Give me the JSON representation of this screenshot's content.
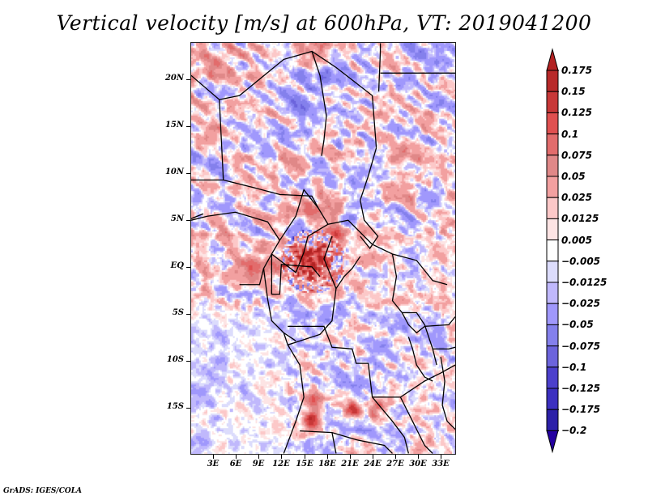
{
  "title": "Vertical velocity [m/s] at 600hPa, VT: 2019041200",
  "footer": "GrADS: IGES/COLA",
  "map": {
    "field": "Vertical velocity",
    "units": "m/s",
    "level": "600hPa",
    "valid_time": "2019041200",
    "lon_range": [
      0,
      35
    ],
    "lat_range": [
      -20,
      24
    ],
    "lat_ticks": [
      {
        "value": 20,
        "label": "20N"
      },
      {
        "value": 15,
        "label": "15N"
      },
      {
        "value": 10,
        "label": "10N"
      },
      {
        "value": 5,
        "label": "5N"
      },
      {
        "value": 0,
        "label": "EQ"
      },
      {
        "value": -5,
        "label": "5S"
      },
      {
        "value": -10,
        "label": "10S"
      },
      {
        "value": -15,
        "label": "15S"
      }
    ],
    "lon_ticks": [
      {
        "value": 3,
        "label": "3E"
      },
      {
        "value": 6,
        "label": "6E"
      },
      {
        "value": 9,
        "label": "9E"
      },
      {
        "value": 12,
        "label": "12E"
      },
      {
        "value": 15,
        "label": "15E"
      },
      {
        "value": 18,
        "label": "18E"
      },
      {
        "value": 21,
        "label": "21E"
      },
      {
        "value": 24,
        "label": "24E"
      },
      {
        "value": 27,
        "label": "27E"
      },
      {
        "value": 30,
        "label": "30E"
      },
      {
        "value": 33,
        "label": "33E"
      }
    ]
  },
  "colorbar": {
    "levels": [
      "0.175",
      "0.15",
      "0.125",
      "0.1",
      "0.075",
      "0.05",
      "0.025",
      "0.0125",
      "0.005",
      "-0.005",
      "-0.0125",
      "-0.025",
      "-0.05",
      "-0.075",
      "-0.1",
      "-0.125",
      "-0.175",
      "-0.2"
    ],
    "colors": [
      "#b22222",
      "#b82a2a",
      "#c83838",
      "#e05050",
      "#e26c6c",
      "#e08888",
      "#f2a0a0",
      "#fcc8c8",
      "#fde4e4",
      "#ffffff",
      "#dcdcfc",
      "#c0b8fc",
      "#a098fc",
      "#8480ec",
      "#6c64dc",
      "#4c40cc",
      "#3c30c0",
      "#2c20a8",
      "#2400a0"
    ]
  }
}
